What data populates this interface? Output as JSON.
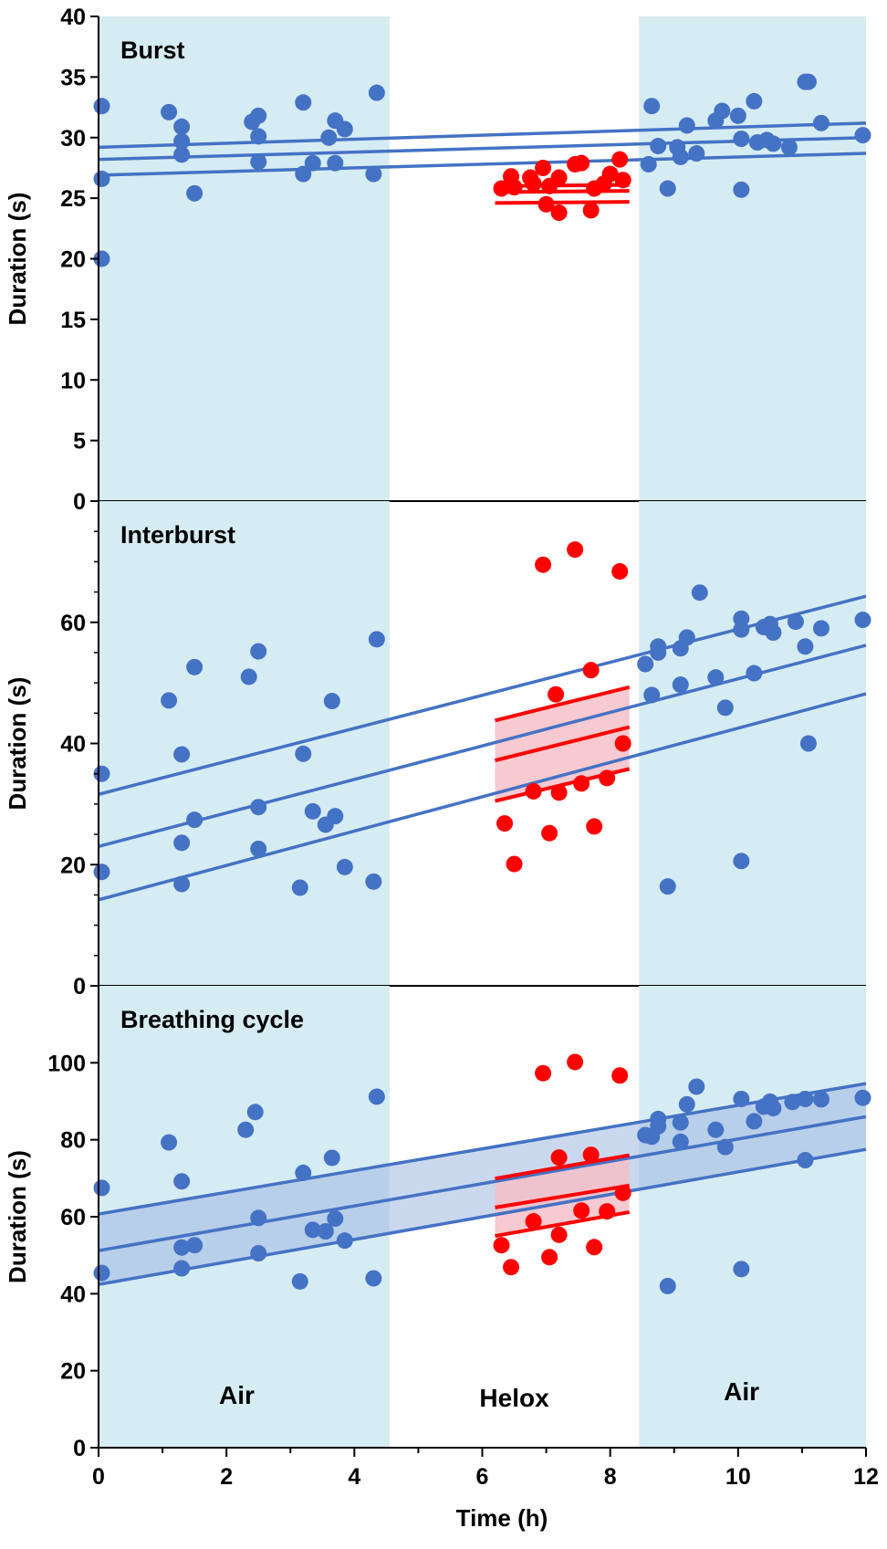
{
  "colors": {
    "air_band": "#d6ecf3",
    "blue": "#4472c4",
    "red": "#ff0000",
    "red_band": "#f6c0c8",
    "blue_band": "#9fb8e0"
  },
  "phases": [
    {
      "label": "Air",
      "start": 0,
      "end": 4.55
    },
    {
      "label": "Helox",
      "start": 4.55,
      "end": 8.45
    },
    {
      "label": "Air",
      "start": 8.45,
      "end": 12
    }
  ],
  "xaxis": {
    "label": "Time (h)",
    "range": [
      0,
      12
    ],
    "ticks": [
      0,
      2,
      4,
      6,
      8,
      10,
      12
    ]
  },
  "chart_data": [
    {
      "type": "scatter",
      "title": "Burst",
      "xlabel": "",
      "ylabel": "Duration (s)",
      "xlim": [
        0,
        12
      ],
      "ylim": [
        0,
        40
      ],
      "yticks": [
        0,
        5,
        10,
        15,
        20,
        25,
        30,
        35,
        40
      ],
      "minor_y": false,
      "band": false,
      "air_points": [
        [
          0.05,
          32.6
        ],
        [
          0.05,
          26.6
        ],
        [
          0.05,
          20.0
        ],
        [
          1.1,
          32.1
        ],
        [
          1.3,
          30.9
        ],
        [
          1.3,
          29.7
        ],
        [
          1.3,
          28.6
        ],
        [
          1.5,
          25.4
        ],
        [
          2.4,
          31.3
        ],
        [
          2.5,
          31.8
        ],
        [
          2.5,
          30.1
        ],
        [
          2.5,
          28.0
        ],
        [
          3.2,
          32.9
        ],
        [
          3.2,
          27.0
        ],
        [
          3.35,
          27.9
        ],
        [
          3.6,
          30.0
        ],
        [
          3.7,
          27.9
        ],
        [
          3.7,
          31.4
        ],
        [
          3.85,
          30.7
        ],
        [
          4.3,
          27.0
        ],
        [
          4.35,
          33.7
        ],
        [
          8.6,
          27.8
        ],
        [
          8.65,
          32.6
        ],
        [
          8.75,
          29.3
        ],
        [
          8.9,
          25.8
        ],
        [
          9.05,
          29.2
        ],
        [
          9.1,
          28.4
        ],
        [
          9.2,
          31.0
        ],
        [
          9.35,
          28.7
        ],
        [
          9.65,
          31.4
        ],
        [
          9.75,
          32.2
        ],
        [
          10.0,
          31.8
        ],
        [
          10.05,
          29.9
        ],
        [
          10.05,
          25.7
        ],
        [
          10.25,
          33.0
        ],
        [
          10.3,
          29.6
        ],
        [
          10.45,
          29.8
        ],
        [
          10.55,
          29.5
        ],
        [
          10.8,
          29.2
        ],
        [
          11.05,
          34.6
        ],
        [
          11.1,
          34.6
        ],
        [
          11.3,
          31.2
        ],
        [
          11.95,
          30.2
        ]
      ],
      "helox_points": [
        [
          6.3,
          25.8
        ],
        [
          6.45,
          26.8
        ],
        [
          6.5,
          25.9
        ],
        [
          6.75,
          26.7
        ],
        [
          6.8,
          26.2
        ],
        [
          6.95,
          27.5
        ],
        [
          7.0,
          24.5
        ],
        [
          7.05,
          26.0
        ],
        [
          7.2,
          26.7
        ],
        [
          7.2,
          23.8
        ],
        [
          7.45,
          27.8
        ],
        [
          7.55,
          27.9
        ],
        [
          7.7,
          24.0
        ],
        [
          7.75,
          25.8
        ],
        [
          7.9,
          26.2
        ],
        [
          8.0,
          27.0
        ],
        [
          8.15,
          28.2
        ],
        [
          8.2,
          26.5
        ]
      ],
      "air_fit": {
        "x": [
          0,
          12
        ],
        "center": [
          28.2,
          30.0
        ],
        "upper": [
          29.2,
          31.2
        ],
        "lower": [
          26.9,
          28.7
        ]
      },
      "helox_fit": {
        "x": [
          6.2,
          8.3
        ],
        "center": [
          25.5,
          25.6
        ],
        "upper": [
          26.0,
          26.1
        ],
        "lower": [
          24.6,
          24.7
        ]
      }
    },
    {
      "type": "scatter",
      "title": "Interburst",
      "xlabel": "",
      "ylabel": "Duration (s)",
      "xlim": [
        0,
        12
      ],
      "ylim": [
        0,
        80
      ],
      "yticks": [
        0,
        20,
        40,
        60
      ],
      "minor_y": true,
      "band": false,
      "air_points": [
        [
          0.05,
          35.0
        ],
        [
          0.05,
          18.8
        ],
        [
          1.1,
          47.1
        ],
        [
          1.3,
          38.2
        ],
        [
          1.3,
          23.6
        ],
        [
          1.3,
          16.8
        ],
        [
          1.5,
          52.6
        ],
        [
          1.5,
          27.4
        ],
        [
          2.35,
          51.0
        ],
        [
          2.5,
          55.2
        ],
        [
          2.5,
          29.5
        ],
        [
          2.5,
          22.6
        ],
        [
          3.15,
          16.2
        ],
        [
          3.2,
          38.3
        ],
        [
          3.35,
          28.8
        ],
        [
          3.55,
          26.6
        ],
        [
          3.65,
          47.0
        ],
        [
          3.7,
          28.0
        ],
        [
          3.85,
          19.6
        ],
        [
          4.3,
          17.2
        ],
        [
          4.35,
          57.2
        ],
        [
          8.55,
          53.1
        ],
        [
          8.65,
          48.0
        ],
        [
          8.75,
          56.0
        ],
        [
          8.75,
          55.0
        ],
        [
          8.9,
          16.4
        ],
        [
          9.1,
          49.7
        ],
        [
          9.1,
          55.7
        ],
        [
          9.2,
          57.5
        ],
        [
          9.4,
          64.9
        ],
        [
          9.65,
          50.9
        ],
        [
          9.8,
          45.9
        ],
        [
          10.05,
          60.6
        ],
        [
          10.05,
          58.8
        ],
        [
          10.05,
          20.6
        ],
        [
          10.25,
          51.6
        ],
        [
          10.4,
          59.2
        ],
        [
          10.5,
          59.7
        ],
        [
          10.55,
          58.3
        ],
        [
          10.9,
          60.1
        ],
        [
          11.05,
          56.0
        ],
        [
          11.1,
          40.0
        ],
        [
          11.3,
          59.0
        ],
        [
          11.95,
          60.4
        ]
      ],
      "helox_points": [
        [
          6.35,
          26.8
        ],
        [
          6.5,
          20.1
        ],
        [
          6.95,
          69.5
        ],
        [
          6.8,
          32.1
        ],
        [
          7.05,
          25.2
        ],
        [
          7.15,
          48.1
        ],
        [
          7.2,
          31.9
        ],
        [
          7.45,
          72.0
        ],
        [
          7.55,
          33.4
        ],
        [
          7.7,
          52.1
        ],
        [
          7.75,
          26.3
        ],
        [
          7.95,
          34.3
        ],
        [
          8.15,
          68.4
        ],
        [
          8.2,
          40.0
        ]
      ],
      "air_fit": {
        "x": [
          0,
          12
        ],
        "center": [
          23.0,
          56.2
        ],
        "upper": [
          31.6,
          64.3
        ],
        "lower": [
          14.2,
          48.2
        ]
      },
      "helox_fit": {
        "x": [
          6.2,
          8.3
        ],
        "center": [
          37.2,
          42.7
        ],
        "upper": [
          43.8,
          49.3
        ],
        "lower": [
          30.5,
          35.8
        ]
      }
    },
    {
      "type": "scatter",
      "title": "Breathing cycle",
      "xlabel": "Time (h)",
      "ylabel": "Duration (s)",
      "xlim": [
        0,
        12
      ],
      "ylim": [
        0,
        120
      ],
      "yticks": [
        0,
        20,
        40,
        60,
        80,
        100
      ],
      "minor_y": false,
      "band": true,
      "air_points": [
        [
          0.05,
          67.5
        ],
        [
          0.05,
          45.4
        ],
        [
          1.1,
          79.3
        ],
        [
          1.3,
          69.2
        ],
        [
          1.3,
          52.0
        ],
        [
          1.3,
          46.6
        ],
        [
          1.5,
          52.6
        ],
        [
          2.3,
          82.6
        ],
        [
          2.45,
          87.2
        ],
        [
          2.5,
          59.7
        ],
        [
          2.5,
          50.5
        ],
        [
          3.2,
          71.4
        ],
        [
          3.15,
          43.2
        ],
        [
          3.35,
          56.6
        ],
        [
          3.55,
          56.2
        ],
        [
          3.65,
          75.3
        ],
        [
          3.7,
          59.5
        ],
        [
          3.85,
          53.8
        ],
        [
          4.3,
          44.0
        ],
        [
          4.35,
          91.2
        ],
        [
          8.55,
          81.2
        ],
        [
          8.65,
          80.8
        ],
        [
          8.75,
          85.4
        ],
        [
          8.75,
          83.5
        ],
        [
          8.9,
          42.0
        ],
        [
          9.1,
          79.5
        ],
        [
          9.1,
          84.5
        ],
        [
          9.2,
          89.2
        ],
        [
          9.35,
          93.8
        ],
        [
          9.65,
          82.6
        ],
        [
          9.8,
          78.1
        ],
        [
          10.05,
          90.6
        ],
        [
          10.05,
          46.4
        ],
        [
          10.25,
          84.8
        ],
        [
          10.4,
          88.6
        ],
        [
          10.5,
          89.9
        ],
        [
          10.55,
          88.2
        ],
        [
          10.85,
          89.8
        ],
        [
          11.05,
          90.6
        ],
        [
          11.05,
          74.7
        ],
        [
          11.3,
          90.5
        ],
        [
          11.95,
          90.9
        ]
      ],
      "helox_points": [
        [
          6.3,
          52.6
        ],
        [
          6.45,
          46.9
        ],
        [
          6.95,
          97.3
        ],
        [
          6.8,
          58.8
        ],
        [
          7.05,
          49.5
        ],
        [
          7.2,
          75.4
        ],
        [
          7.2,
          55.3
        ],
        [
          7.45,
          100.2
        ],
        [
          7.55,
          61.6
        ],
        [
          7.7,
          76.1
        ],
        [
          7.75,
          52.1
        ],
        [
          7.95,
          61.4
        ],
        [
          8.15,
          96.7
        ],
        [
          8.2,
          66.2
        ]
      ],
      "air_fit": {
        "x": [
          0,
          12
        ],
        "center": [
          51.2,
          86.0
        ],
        "upper": [
          60.7,
          94.6
        ],
        "lower": [
          42.4,
          77.5
        ]
      },
      "helox_fit": {
        "x": [
          6.2,
          8.3
        ],
        "center": [
          62.4,
          68.1
        ],
        "upper": [
          69.9,
          76.0
        ],
        "lower": [
          55.0,
          61.2
        ]
      }
    }
  ]
}
